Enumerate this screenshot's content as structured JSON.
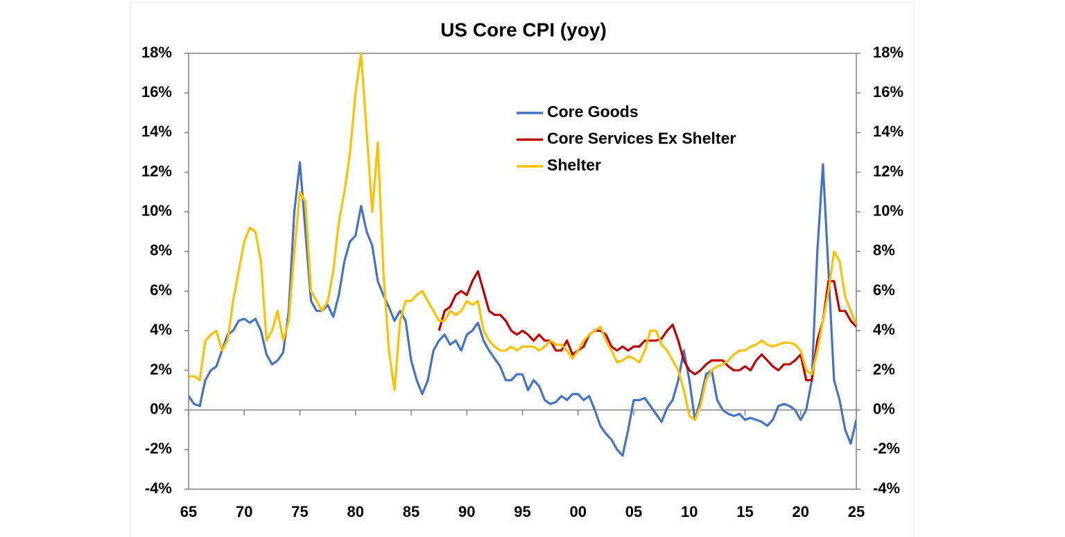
{
  "chart_data": {
    "type": "line",
    "title": "US Core CPI (yoy)",
    "x": [
      1965,
      1965.5,
      1966,
      1966.5,
      1967,
      1967.5,
      1968,
      1968.5,
      1969,
      1969.5,
      1970,
      1970.5,
      1971,
      1971.5,
      1972,
      1972.5,
      1973,
      1973.5,
      1974,
      1974.5,
      1975,
      1975.5,
      1976,
      1976.5,
      1977,
      1977.5,
      1978,
      1978.5,
      1979,
      1979.5,
      1980,
      1980.5,
      1981,
      1981.5,
      1982,
      1982.5,
      1983,
      1983.5,
      1984,
      1984.5,
      1985,
      1985.5,
      1986,
      1986.5,
      1987,
      1987.5,
      1988,
      1988.5,
      1989,
      1989.5,
      1990,
      1990.5,
      1991,
      1991.5,
      1992,
      1992.5,
      1993,
      1993.5,
      1994,
      1994.5,
      1995,
      1995.5,
      1996,
      1996.5,
      1997,
      1997.5,
      1998,
      1998.5,
      1999,
      1999.5,
      2000,
      2000.5,
      2001,
      2001.5,
      2002,
      2002.5,
      2003,
      2003.5,
      2004,
      2004.5,
      2005,
      2005.5,
      2006,
      2006.5,
      2007,
      2007.5,
      2008,
      2008.5,
      2009,
      2009.5,
      2010,
      2010.5,
      2011,
      2011.5,
      2012,
      2012.5,
      2013,
      2013.5,
      2014,
      2014.5,
      2015,
      2015.5,
      2016,
      2016.5,
      2017,
      2017.5,
      2018,
      2018.5,
      2019,
      2019.5,
      2020,
      2020.5,
      2021,
      2021.5,
      2022,
      2022.5,
      2023,
      2023.5,
      2024,
      2024.5,
      2025
    ],
    "series": [
      {
        "name": "Core Goods",
        "color": "#4472c4",
        "values": [
          0.7,
          0.3,
          0.2,
          1.5,
          2.0,
          2.2,
          3.0,
          3.8,
          4.0,
          4.5,
          4.6,
          4.4,
          4.6,
          4.0,
          2.8,
          2.3,
          2.5,
          2.9,
          5.0,
          10.0,
          12.5,
          9.0,
          5.5,
          5.0,
          5.0,
          5.3,
          4.7,
          5.8,
          7.5,
          8.5,
          8.8,
          10.3,
          9.0,
          8.3,
          6.5,
          5.8,
          5.2,
          4.5,
          5.0,
          4.5,
          2.5,
          1.5,
          0.8,
          1.5,
          3.0,
          3.5,
          3.8,
          3.3,
          3.5,
          3.0,
          3.8,
          4.0,
          4.4,
          3.5,
          3.0,
          2.6,
          2.2,
          1.5,
          1.5,
          1.8,
          1.8,
          1.0,
          1.5,
          1.2,
          0.5,
          0.3,
          0.4,
          0.7,
          0.5,
          0.8,
          0.8,
          0.5,
          0.7,
          0.0,
          -0.8,
          -1.2,
          -1.5,
          -2.0,
          -2.3,
          -1.0,
          0.5,
          0.5,
          0.6,
          0.2,
          -0.2,
          -0.6,
          0.1,
          0.5,
          1.5,
          3.0,
          1.5,
          -0.5,
          0.5,
          1.8,
          2.0,
          0.5,
          0.0,
          -0.2,
          -0.3,
          -0.2,
          -0.5,
          -0.4,
          -0.5,
          -0.6,
          -0.8,
          -0.5,
          0.2,
          0.3,
          0.2,
          0.0,
          -0.5,
          0.0,
          1.5,
          8.0,
          12.4,
          7.0,
          1.5,
          0.5,
          -1.0,
          -1.7,
          -0.5
        ]
      },
      {
        "name": "Core Services Ex Shelter",
        "color": "#c00000",
        "values": [
          null,
          null,
          null,
          null,
          null,
          null,
          null,
          null,
          null,
          null,
          null,
          null,
          null,
          null,
          null,
          null,
          null,
          null,
          null,
          null,
          null,
          null,
          null,
          null,
          null,
          null,
          null,
          null,
          null,
          null,
          null,
          null,
          null,
          null,
          null,
          null,
          null,
          null,
          null,
          null,
          null,
          null,
          null,
          null,
          null,
          4.0,
          5.0,
          5.2,
          5.8,
          6.0,
          5.8,
          6.5,
          7.0,
          6.0,
          5.0,
          4.8,
          4.8,
          4.5,
          4.0,
          3.8,
          4.0,
          3.8,
          3.5,
          3.8,
          3.5,
          3.5,
          3.0,
          3.0,
          3.5,
          2.8,
          3.0,
          3.2,
          3.8,
          4.0,
          4.0,
          3.8,
          3.2,
          3.0,
          3.2,
          3.0,
          3.2,
          3.2,
          3.5,
          3.5,
          3.5,
          3.6,
          4.0,
          4.3,
          3.5,
          2.5,
          2.0,
          1.8,
          2.0,
          2.3,
          2.5,
          2.5,
          2.5,
          2.2,
          2.0,
          2.0,
          2.2,
          2.0,
          2.5,
          2.8,
          2.5,
          2.2,
          2.0,
          2.3,
          2.3,
          2.5,
          2.8,
          1.5,
          1.5,
          3.5,
          4.5,
          6.5,
          6.5,
          5.0,
          5.0,
          4.5,
          4.2
        ]
      },
      {
        "name": "Shelter",
        "color": "#ffc000",
        "values": [
          1.7,
          1.7,
          1.5,
          3.5,
          3.8,
          4.0,
          3.0,
          3.5,
          5.5,
          7.0,
          8.5,
          9.2,
          9.0,
          7.5,
          3.5,
          4.0,
          5.0,
          3.5,
          4.5,
          8.0,
          11.0,
          10.5,
          6.0,
          5.5,
          5.0,
          5.5,
          7.0,
          9.5,
          11.0,
          13.0,
          16.0,
          18.0,
          14.0,
          10.0,
          13.5,
          7.0,
          3.0,
          1.0,
          4.5,
          5.5,
          5.5,
          5.8,
          6.0,
          5.5,
          5.0,
          4.5,
          4.5,
          5.0,
          4.8,
          5.0,
          5.5,
          5.3,
          5.5,
          4.0,
          3.5,
          3.2,
          3.0,
          3.0,
          3.2,
          3.0,
          3.2,
          3.2,
          3.2,
          3.0,
          3.2,
          3.5,
          3.3,
          3.3,
          3.0,
          2.6,
          3.0,
          3.5,
          3.8,
          4.0,
          4.2,
          3.5,
          3.0,
          2.4,
          2.5,
          2.7,
          2.6,
          2.4,
          3.0,
          4.0,
          4.0,
          3.3,
          3.0,
          2.5,
          2.0,
          1.0,
          -0.3,
          -0.5,
          0.2,
          1.5,
          2.0,
          2.2,
          2.3,
          2.5,
          2.8,
          3.0,
          3.0,
          3.2,
          3.3,
          3.5,
          3.3,
          3.2,
          3.3,
          3.4,
          3.4,
          3.3,
          3.0,
          2.0,
          1.8,
          3.0,
          4.5,
          6.0,
          8.0,
          7.5,
          5.7,
          5.0,
          4.3
        ]
      }
    ],
    "xlim": [
      1965,
      2025
    ],
    "xticks": [
      {
        "value": 1965,
        "label": "65"
      },
      {
        "value": 1970,
        "label": "70"
      },
      {
        "value": 1975,
        "label": "75"
      },
      {
        "value": 1980,
        "label": "80"
      },
      {
        "value": 1985,
        "label": "85"
      },
      {
        "value": 1990,
        "label": "90"
      },
      {
        "value": 1995,
        "label": "95"
      },
      {
        "value": 2000,
        "label": "00"
      },
      {
        "value": 2005,
        "label": "05"
      },
      {
        "value": 2010,
        "label": "10"
      },
      {
        "value": 2015,
        "label": "15"
      },
      {
        "value": 2020,
        "label": "20"
      },
      {
        "value": 2025,
        "label": "25"
      }
    ],
    "ylim": [
      -4,
      18
    ],
    "yticks": [
      {
        "value": -4,
        "label": "-4%"
      },
      {
        "value": -2,
        "label": "-2%"
      },
      {
        "value": 0,
        "label": "0%"
      },
      {
        "value": 2,
        "label": "2%"
      },
      {
        "value": 4,
        "label": "4%"
      },
      {
        "value": 6,
        "label": "6%"
      },
      {
        "value": 8,
        "label": "8%"
      },
      {
        "value": 10,
        "label": "10%"
      },
      {
        "value": 12,
        "label": "12%"
      },
      {
        "value": 14,
        "label": "14%"
      },
      {
        "value": 16,
        "label": "16%"
      },
      {
        "value": 18,
        "label": "18%"
      }
    ],
    "y2lim": [
      -4,
      18
    ],
    "y2ticks": [
      {
        "value": -4,
        "label": "-4%"
      },
      {
        "value": -2,
        "label": "-2%"
      },
      {
        "value": 0,
        "label": "0%"
      },
      {
        "value": 2,
        "label": "2%"
      },
      {
        "value": 4,
        "label": "4%"
      },
      {
        "value": 6,
        "label": "6%"
      },
      {
        "value": 8,
        "label": "8%"
      },
      {
        "value": 10,
        "label": "10%"
      },
      {
        "value": 12,
        "label": "12%"
      },
      {
        "value": 14,
        "label": "14%"
      },
      {
        "value": 16,
        "label": "16%"
      },
      {
        "value": 18,
        "label": "18%"
      }
    ],
    "legend": "top",
    "grid": false
  }
}
